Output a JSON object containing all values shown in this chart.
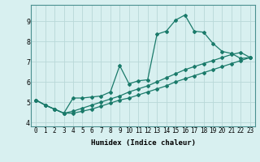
{
  "xlabel": "Humidex (Indice chaleur)",
  "ylabel": "",
  "background_color": "#d8f0f0",
  "grid_color": "#b8d8d8",
  "line_color": "#1a7a6a",
  "x_values": [
    0,
    1,
    2,
    3,
    4,
    5,
    6,
    7,
    8,
    9,
    10,
    11,
    12,
    13,
    14,
    15,
    16,
    17,
    18,
    19,
    20,
    21,
    22,
    23
  ],
  "line1_y": [
    5.1,
    4.85,
    4.65,
    4.45,
    5.2,
    5.2,
    5.25,
    5.3,
    5.5,
    6.8,
    5.9,
    6.05,
    6.1,
    8.35,
    8.5,
    9.05,
    9.3,
    8.5,
    8.45,
    7.9,
    7.5,
    7.4,
    7.15,
    7.2
  ],
  "line2_y": [
    5.1,
    4.85,
    4.65,
    4.45,
    4.45,
    4.55,
    4.65,
    4.8,
    4.95,
    5.1,
    5.2,
    5.35,
    5.5,
    5.65,
    5.8,
    6.0,
    6.15,
    6.3,
    6.45,
    6.6,
    6.75,
    6.9,
    7.05,
    7.2
  ],
  "line3_y": [
    5.1,
    4.85,
    4.65,
    4.45,
    4.55,
    4.7,
    4.85,
    5.0,
    5.15,
    5.3,
    5.5,
    5.65,
    5.8,
    6.0,
    6.2,
    6.4,
    6.6,
    6.75,
    6.9,
    7.05,
    7.2,
    7.35,
    7.45,
    7.2
  ],
  "ylim": [
    3.8,
    9.8
  ],
  "xlim": [
    -0.5,
    23.5
  ],
  "yticks": [
    4,
    5,
    6,
    7,
    8,
    9
  ],
  "xticks": [
    0,
    1,
    2,
    3,
    4,
    5,
    6,
    7,
    8,
    9,
    10,
    11,
    12,
    13,
    14,
    15,
    16,
    17,
    18,
    19,
    20,
    21,
    22,
    23
  ],
  "xtick_labels": [
    "0",
    "1",
    "2",
    "3",
    "4",
    "5",
    "6",
    "7",
    "8",
    "9",
    "10",
    "11",
    "12",
    "13",
    "14",
    "15",
    "16",
    "17",
    "18",
    "19",
    "20",
    "21",
    "22",
    "23"
  ],
  "marker": "D",
  "marker_size": 2.0,
  "line_width": 0.9,
  "tick_fontsize": 5.5,
  "xlabel_fontsize": 6.5,
  "spine_color": "#4a9090"
}
